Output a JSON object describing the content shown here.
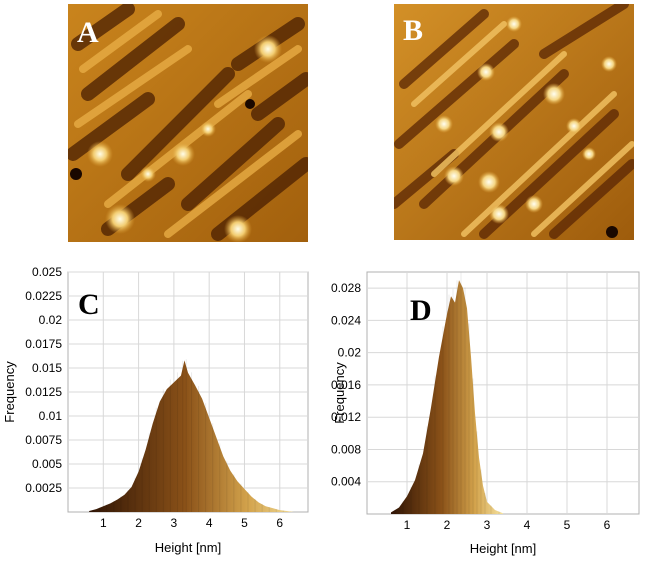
{
  "figure": {
    "panels": [
      {
        "label": "A",
        "kind": "afm-image"
      },
      {
        "label": "B",
        "kind": "afm-image"
      },
      {
        "label": "C",
        "kind": "histogram"
      },
      {
        "label": "D",
        "kind": "histogram"
      }
    ],
    "colors": {
      "afm_dark": "#2b1000",
      "afm_mid": "#c77a10",
      "afm_light": "#fff3c0",
      "hist_dark": "#3a1a05",
      "hist_light": "#f3dc92"
    }
  },
  "chart_data": [
    {
      "type": "histogram",
      "panel": "C",
      "xlabel": "Height [nm]",
      "ylabel": "Frequency",
      "xlim": [
        0,
        6.8
      ],
      "ylim": [
        0,
        0.025
      ],
      "x_ticks": [
        "1",
        "2",
        "3",
        "4",
        "5",
        "6"
      ],
      "y_ticks": [
        "0.0025",
        "0.005",
        "0.0075",
        "0.01",
        "0.0125",
        "0.015",
        "0.0175",
        "0.02",
        "0.0225",
        "0.025"
      ],
      "grid": true,
      "x": [
        0.6,
        0.8,
        1.0,
        1.2,
        1.4,
        1.6,
        1.8,
        2.0,
        2.2,
        2.4,
        2.6,
        2.8,
        3.0,
        3.2,
        3.3,
        3.4,
        3.6,
        3.8,
        4.0,
        4.2,
        4.4,
        4.6,
        4.8,
        5.0,
        5.2,
        5.4,
        5.6,
        5.8,
        6.0,
        6.2,
        6.4,
        6.6
      ],
      "y": [
        0.0001,
        0.0003,
        0.0006,
        0.0009,
        0.0013,
        0.0018,
        0.0026,
        0.0042,
        0.0065,
        0.0092,
        0.0115,
        0.0128,
        0.0135,
        0.0142,
        0.0158,
        0.0145,
        0.0132,
        0.0118,
        0.0098,
        0.0078,
        0.0058,
        0.0043,
        0.0032,
        0.0024,
        0.0016,
        0.001,
        0.0006,
        0.0004,
        0.0002,
        0.0001,
        0.0,
        0.0
      ]
    },
    {
      "type": "histogram",
      "panel": "D",
      "xlabel": "Height [nm]",
      "ylabel": "Frequency",
      "xlim": [
        0,
        6.8
      ],
      "ylim": [
        0,
        0.03
      ],
      "x_ticks": [
        "1",
        "2",
        "3",
        "4",
        "5",
        "6"
      ],
      "y_ticks": [
        "0.004",
        "0.008",
        "0.012",
        "0.016",
        "0.02",
        "0.024",
        "0.028"
      ],
      "grid": true,
      "x": [
        0.6,
        0.8,
        1.0,
        1.2,
        1.4,
        1.6,
        1.8,
        2.0,
        2.1,
        2.2,
        2.3,
        2.4,
        2.5,
        2.6,
        2.7,
        2.8,
        2.9,
        3.0,
        3.2,
        3.4
      ],
      "y": [
        0.0002,
        0.0008,
        0.0022,
        0.0042,
        0.0075,
        0.0132,
        0.0195,
        0.0248,
        0.027,
        0.0262,
        0.029,
        0.028,
        0.0255,
        0.0195,
        0.0125,
        0.007,
        0.0035,
        0.0015,
        0.0005,
        0.0001
      ]
    }
  ]
}
